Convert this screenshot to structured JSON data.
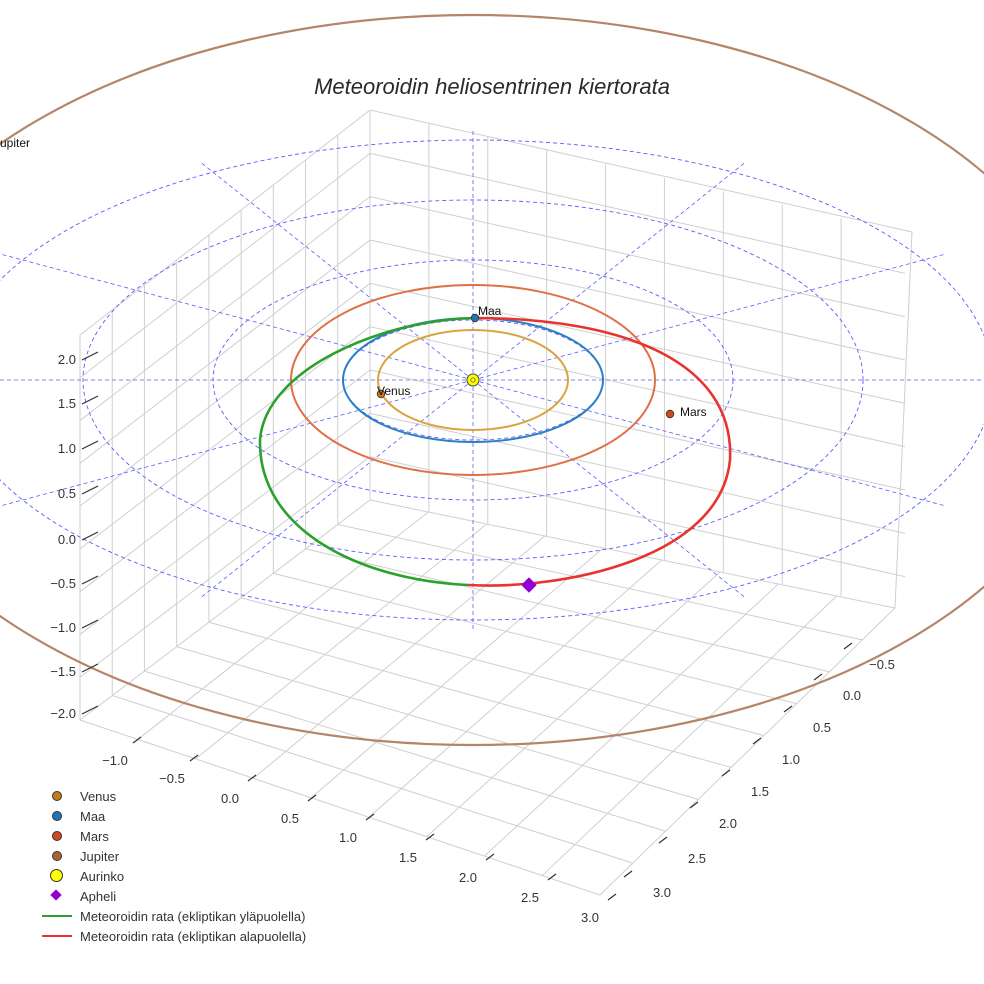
{
  "chart_data": {
    "type": "line3d",
    "title": "Meteoroidin heliosentrinen kiertorata",
    "axes": {
      "z_ticks": [
        "2.0",
        "1.5",
        "1.0",
        "0.5",
        "0.0",
        "−0.5",
        "−1.0",
        "−1.5",
        "−2.0"
      ],
      "x_ticks": [
        "−1.0",
        "−0.5",
        "0.0",
        "0.5",
        "1.0",
        "1.5",
        "2.0",
        "2.5",
        "3.0"
      ],
      "y_ticks": [
        "−0.5",
        "0.0",
        "0.5",
        "1.0",
        "1.5",
        "2.0",
        "2.5",
        "3.0"
      ],
      "zlim": [
        -2.0,
        2.0
      ],
      "xlim": [
        -1.2,
        3.0
      ],
      "ylim": [
        -0.7,
        3.2
      ]
    },
    "planets": [
      {
        "name": "Venus",
        "label": "Venus",
        "orbit_radius_au": 0.72,
        "color": "#d9a441",
        "marker_color": "#c97a1c"
      },
      {
        "name": "Maa",
        "label": "Maa",
        "orbit_radius_au": 1.0,
        "color": "#2d7fc4",
        "marker_color": "#1f77b4"
      },
      {
        "name": "Mars",
        "label": "Mars",
        "orbit_radius_au": 1.52,
        "color": "#e07046",
        "marker_color": "#d04a1c"
      },
      {
        "name": "Jupiter",
        "label": "Jupiter",
        "orbit_radius_au": 5.2,
        "color": "#b5856a",
        "marker_color": "#b0622e"
      }
    ],
    "grid_circles_au": [
      1.0,
      2.0,
      3.0
    ],
    "sun": {
      "name": "Aurinko",
      "position": [
        0,
        0,
        0
      ],
      "color": "#ffff00"
    },
    "aphelion": {
      "name": "Apheli",
      "color": "#9400d3"
    },
    "meteoroid_orbit": {
      "above_ecliptic": {
        "name": "Meteoroidin rata (ekliptikan yläpuolella)",
        "color": "#2ca02c"
      },
      "below_ecliptic": {
        "name": "Meteoroidin rata (ekliptikan alapuolella)",
        "color": "#e8332e"
      }
    }
  },
  "legend": [
    {
      "key": "venus",
      "label": "Venus",
      "kind": "dot",
      "color": "#c97a1c"
    },
    {
      "key": "maa",
      "label": "Maa",
      "kind": "dot",
      "color": "#1f77b4"
    },
    {
      "key": "mars",
      "label": "Mars",
      "kind": "dot",
      "color": "#d04a1c"
    },
    {
      "key": "jupiter",
      "label": "Jupiter",
      "kind": "dot",
      "color": "#b0622e"
    },
    {
      "key": "aurinko",
      "label": "Aurinko",
      "kind": "bigdot",
      "color": "#ffff00"
    },
    {
      "key": "apheli",
      "label": "Apheli",
      "kind": "diamond",
      "color": "#9400d3"
    },
    {
      "key": "above",
      "label": "Meteoroidin rata (ekliptikan yläpuolella)",
      "kind": "line",
      "color": "#2ca02c"
    },
    {
      "key": "below",
      "label": "Meteoroidin rata (ekliptikan alapuolella)",
      "kind": "line",
      "color": "#e8332e"
    }
  ]
}
